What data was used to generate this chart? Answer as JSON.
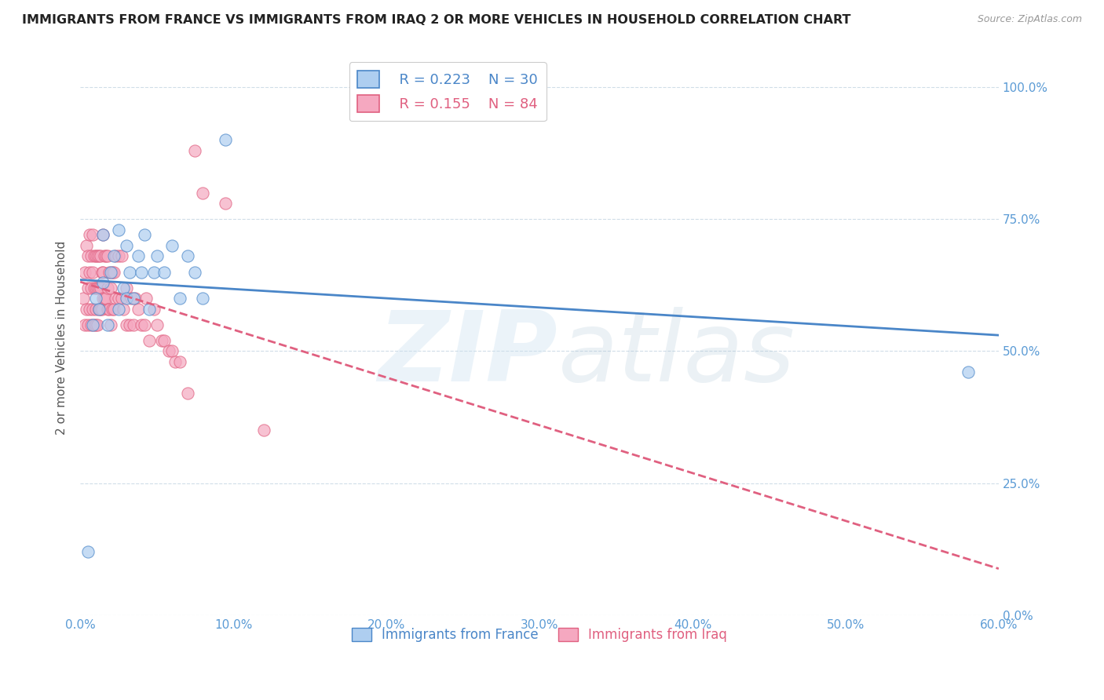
{
  "title": "IMMIGRANTS FROM FRANCE VS IMMIGRANTS FROM IRAQ 2 OR MORE VEHICLES IN HOUSEHOLD CORRELATION CHART",
  "source": "Source: ZipAtlas.com",
  "xlim": [
    0.0,
    0.6
  ],
  "ylim": [
    0.0,
    1.05
  ],
  "france_R": 0.223,
  "france_N": 30,
  "iraq_R": 0.155,
  "iraq_N": 84,
  "france_color": "#aecef0",
  "iraq_color": "#f5a8c0",
  "france_line_color": "#4a86c8",
  "iraq_line_color": "#e06080",
  "france_x": [
    0.005,
    0.008,
    0.01,
    0.012,
    0.015,
    0.015,
    0.018,
    0.02,
    0.022,
    0.025,
    0.025,
    0.028,
    0.03,
    0.03,
    0.032,
    0.035,
    0.038,
    0.04,
    0.042,
    0.045,
    0.048,
    0.05,
    0.055,
    0.06,
    0.065,
    0.07,
    0.075,
    0.08,
    0.095,
    0.58
  ],
  "france_y": [
    0.12,
    0.55,
    0.6,
    0.58,
    0.63,
    0.72,
    0.55,
    0.65,
    0.68,
    0.58,
    0.73,
    0.62,
    0.6,
    0.7,
    0.65,
    0.6,
    0.68,
    0.65,
    0.72,
    0.58,
    0.65,
    0.68,
    0.65,
    0.7,
    0.6,
    0.68,
    0.65,
    0.6,
    0.9,
    0.46
  ],
  "iraq_x": [
    0.002,
    0.003,
    0.003,
    0.004,
    0.004,
    0.005,
    0.005,
    0.005,
    0.006,
    0.006,
    0.006,
    0.007,
    0.007,
    0.007,
    0.008,
    0.008,
    0.008,
    0.009,
    0.009,
    0.009,
    0.01,
    0.01,
    0.01,
    0.01,
    0.011,
    0.011,
    0.011,
    0.012,
    0.012,
    0.012,
    0.013,
    0.013,
    0.013,
    0.014,
    0.014,
    0.015,
    0.015,
    0.015,
    0.016,
    0.016,
    0.017,
    0.017,
    0.018,
    0.018,
    0.018,
    0.019,
    0.019,
    0.02,
    0.02,
    0.021,
    0.021,
    0.022,
    0.022,
    0.023,
    0.023,
    0.025,
    0.025,
    0.027,
    0.027,
    0.028,
    0.03,
    0.03,
    0.032,
    0.033,
    0.035,
    0.036,
    0.038,
    0.04,
    0.042,
    0.043,
    0.045,
    0.048,
    0.05,
    0.053,
    0.055,
    0.058,
    0.06,
    0.062,
    0.065,
    0.07,
    0.075,
    0.08,
    0.095,
    0.12
  ],
  "iraq_y": [
    0.6,
    0.55,
    0.65,
    0.58,
    0.7,
    0.55,
    0.62,
    0.68,
    0.58,
    0.65,
    0.72,
    0.55,
    0.62,
    0.68,
    0.58,
    0.65,
    0.72,
    0.55,
    0.62,
    0.68,
    0.55,
    0.58,
    0.62,
    0.68,
    0.55,
    0.62,
    0.68,
    0.58,
    0.62,
    0.68,
    0.58,
    0.62,
    0.68,
    0.58,
    0.65,
    0.6,
    0.65,
    0.72,
    0.6,
    0.68,
    0.6,
    0.68,
    0.58,
    0.62,
    0.68,
    0.58,
    0.65,
    0.55,
    0.62,
    0.58,
    0.65,
    0.58,
    0.65,
    0.6,
    0.68,
    0.6,
    0.68,
    0.6,
    0.68,
    0.58,
    0.55,
    0.62,
    0.55,
    0.6,
    0.55,
    0.6,
    0.58,
    0.55,
    0.55,
    0.6,
    0.52,
    0.58,
    0.55,
    0.52,
    0.52,
    0.5,
    0.5,
    0.48,
    0.48,
    0.42,
    0.88,
    0.8,
    0.78,
    0.35
  ],
  "legend_france_label": "R = 0.223    N = 30",
  "legend_iraq_label": "R = 0.155    N = 84",
  "bottom_france_label": "Immigrants from France",
  "bottom_iraq_label": "Immigrants from Iraq"
}
